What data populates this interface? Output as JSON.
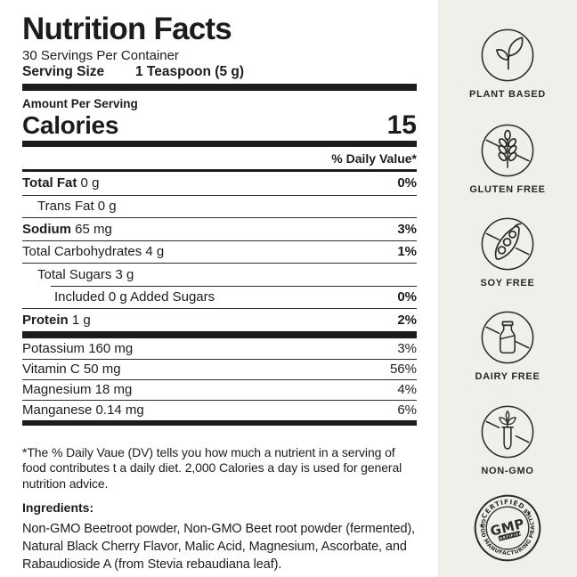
{
  "label": {
    "title": "Nutrition Facts",
    "servings_per_container": "30 Servings Per Container",
    "serving_size_label": "Serving Size",
    "serving_size_value": "1 Teaspoon (5 g)",
    "amount_per_serving": "Amount Per Serving",
    "calories_label": "Calories",
    "calories_value": "15",
    "daily_value_header": "% Daily Value*",
    "rows": [
      {
        "bold": "Total Fat",
        "text": " 0 g",
        "percent": "0%",
        "percent_bold": true,
        "indent": 0,
        "sep": "none"
      },
      {
        "bold": "",
        "text": "Trans Fat 0 g",
        "percent": "",
        "percent_bold": false,
        "indent": 1,
        "sep": "full"
      },
      {
        "bold": "Sodium",
        "text": " 65 mg",
        "percent": "3%",
        "percent_bold": true,
        "indent": 0,
        "sep": "full"
      },
      {
        "bold": "",
        "text": "Total Carbohydrates 4 g",
        "percent": "1%",
        "percent_bold": true,
        "indent": 0,
        "sep": "full"
      },
      {
        "bold": "",
        "text": "Total Sugars 3 g",
        "percent": "",
        "percent_bold": false,
        "indent": 1,
        "sep": "full"
      },
      {
        "bold": "",
        "text": "Included 0 g Added Sugars",
        "percent": "0%",
        "percent_bold": true,
        "indent": 2,
        "sep": "indent"
      },
      {
        "bold": "Protein",
        "text": " 1 g",
        "percent": "2%",
        "percent_bold": true,
        "indent": 0,
        "sep": "full"
      },
      {
        "type": "bar"
      },
      {
        "bold": "",
        "text": "Potassium 160 mg",
        "percent": "3%",
        "percent_bold": false,
        "indent": 0,
        "sep": "none",
        "compact": true
      },
      {
        "bold": "",
        "text": "Vitamin C 50 mg",
        "percent": "56%",
        "percent_bold": false,
        "indent": 0,
        "sep": "full",
        "compact": true
      },
      {
        "bold": "",
        "text": "Magnesium 18 mg",
        "percent": "4%",
        "percent_bold": false,
        "indent": 0,
        "sep": "full",
        "compact": true
      },
      {
        "bold": "",
        "text": "Manganese 0.14 mg",
        "percent": "6%",
        "percent_bold": false,
        "indent": 0,
        "sep": "full",
        "compact": true
      },
      {
        "type": "bar",
        "thin": true
      }
    ],
    "footnote": "*The % Daily Vaue (DV) tells you how much a nutrient in a serving of food contributes t a daily diet. 2,000 Calories a day is used for general nutrition advice.",
    "ingredients_title": "Ingredients:",
    "ingredients_text": "Non-GMO Beetroot powder, Non-GMO Beet root powder (fermented), Natural Black Cherry Flavor, Malic Acid, Magnesium, Ascorbate, and Rabaudioside A (from Stevia rebaudiana leaf)."
  },
  "badges": [
    {
      "label": "PLANT BASED",
      "icon": "leaf-icon",
      "slash": false
    },
    {
      "label": "GLUTEN FREE",
      "icon": "wheat-icon",
      "slash": true
    },
    {
      "label": "SOY FREE",
      "icon": "soy-pod-icon",
      "slash": true
    },
    {
      "label": "DAIRY FREE",
      "icon": "milk-bottle-icon",
      "slash": true
    },
    {
      "label": "NON-GMO",
      "icon": "test-tube-plant-icon",
      "slash": true
    },
    {
      "label": "",
      "icon": "gmp-seal-icon",
      "slash": false,
      "seal": {
        "stars": "★",
        "top_text": "CERTIFIED",
        "ring_text": "GOOD MANUFACTURING PRACTICE",
        "center_text": "GMP",
        "center_sub_text": "CERTIFIED"
      }
    }
  ],
  "colors": {
    "background": "#ffffff",
    "sidebar_background": "#f0efe9",
    "text": "#1d1c1a",
    "badge_line": "#2e2c28"
  }
}
